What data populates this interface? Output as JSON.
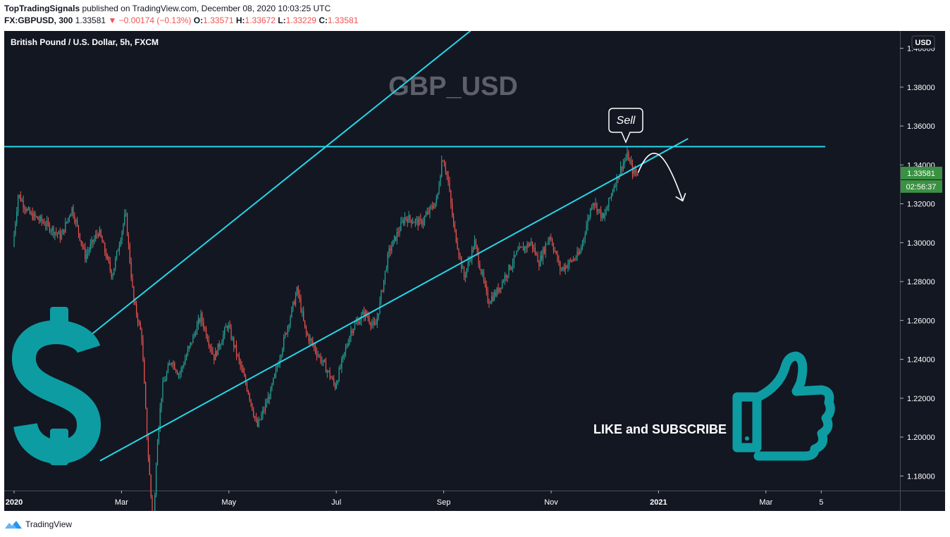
{
  "header": {
    "publisher": "TopTradingSignals",
    "published_text": " published on TradingView.com, December 08, 2020 10:03:25 UTC",
    "symbol": "FX:GBPUSD, 300",
    "last": "1.33581",
    "change": "−0.00174 (−0.13%)",
    "o_label": "O:",
    "o_value": "1.33571",
    "h_label": "H:",
    "h_value": "1.33672",
    "l_label": "L:",
    "l_value": "1.33229",
    "c_label": "C:",
    "c_value": "1.33581"
  },
  "chart_title": "British Pound / U.S. Dollar, 5h, FXCM",
  "watermark": "GBP_USD",
  "annotation_sell": "Sell",
  "like_text": "LIKE and SUBSCRIBE",
  "currency_label": "USD",
  "price_badge": "1.33581",
  "countdown_badge": "02:56:37",
  "footer_brand": "TradingView",
  "colors": {
    "background": "#131722",
    "trendline": "#26d7e8",
    "up_candle": "#26a69a",
    "down_candle": "#ef5350",
    "icon_teal": "#0e9ca3",
    "badge_green": "#3b9143"
  },
  "chart_data": {
    "type": "candlestick",
    "ylim": [
      1.1725,
      1.4089
    ],
    "yticks": [
      "1.40000",
      "1.38000",
      "1.36000",
      "1.34000",
      "1.32000",
      "1.30000",
      "1.28000",
      "1.26000",
      "1.24000",
      "1.22000",
      "1.20000",
      "1.18000"
    ],
    "xticks": [
      "2020",
      "Mar",
      "May",
      "Jul",
      "Sep",
      "Nov",
      "2021",
      "Mar",
      "5"
    ],
    "xtick_months": [
      0,
      2,
      4,
      6,
      8,
      10,
      12,
      14,
      15.03
    ],
    "price_path": [
      [
        0,
        1.298
      ],
      [
        0.1,
        1.325
      ],
      [
        0.3,
        1.315
      ],
      [
        0.6,
        1.31
      ],
      [
        0.9,
        1.303
      ],
      [
        1.1,
        1.318
      ],
      [
        1.35,
        1.293
      ],
      [
        1.6,
        1.306
      ],
      [
        1.85,
        1.283
      ],
      [
        2.1,
        1.315
      ],
      [
        2.25,
        1.27
      ],
      [
        2.4,
        1.252
      ],
      [
        2.5,
        1.2
      ],
      [
        2.62,
        1.15
      ],
      [
        2.68,
        1.195
      ],
      [
        2.78,
        1.225
      ],
      [
        2.95,
        1.24
      ],
      [
        3.1,
        1.232
      ],
      [
        3.5,
        1.262
      ],
      [
        3.75,
        1.241
      ],
      [
        4.0,
        1.258
      ],
      [
        4.4,
        1.222
      ],
      [
        4.55,
        1.205
      ],
      [
        4.8,
        1.223
      ],
      [
        5.05,
        1.25
      ],
      [
        5.3,
        1.276
      ],
      [
        5.45,
        1.254
      ],
      [
        5.9,
        1.232
      ],
      [
        6.0,
        1.226
      ],
      [
        6.3,
        1.255
      ],
      [
        6.55,
        1.264
      ],
      [
        6.75,
        1.256
      ],
      [
        7.0,
        1.295
      ],
      [
        7.3,
        1.313
      ],
      [
        7.6,
        1.31
      ],
      [
        7.9,
        1.322
      ],
      [
        8.0,
        1.345
      ],
      [
        8.1,
        1.333
      ],
      [
        8.2,
        1.31
      ],
      [
        8.4,
        1.282
      ],
      [
        8.6,
        1.3
      ],
      [
        8.85,
        1.27
      ],
      [
        9.0,
        1.274
      ],
      [
        9.4,
        1.295
      ],
      [
        9.65,
        1.3
      ],
      [
        9.8,
        1.29
      ],
      [
        10.0,
        1.304
      ],
      [
        10.2,
        1.286
      ],
      [
        10.55,
        1.294
      ],
      [
        10.8,
        1.322
      ],
      [
        11.0,
        1.312
      ],
      [
        11.2,
        1.33
      ],
      [
        11.35,
        1.34
      ],
      [
        11.45,
        1.345
      ],
      [
        11.55,
        1.336
      ],
      [
        11.62,
        1.3358
      ]
    ],
    "last_price": 1.33581,
    "horizontal_level": 1.3494,
    "channel_upper": [
      [
        1.35,
        1.2508
      ],
      [
        6.0,
        1.3537
      ]
    ],
    "channel_lower": [
      [
        1.6,
        1.1878
      ],
      [
        12.55,
        1.3535
      ]
    ],
    "projection_arrow": [
      [
        11.62,
        1.336
      ],
      [
        11.9,
        1.344
      ],
      [
        12.15,
        1.338
      ],
      [
        12.45,
        1.3215
      ]
    ]
  }
}
